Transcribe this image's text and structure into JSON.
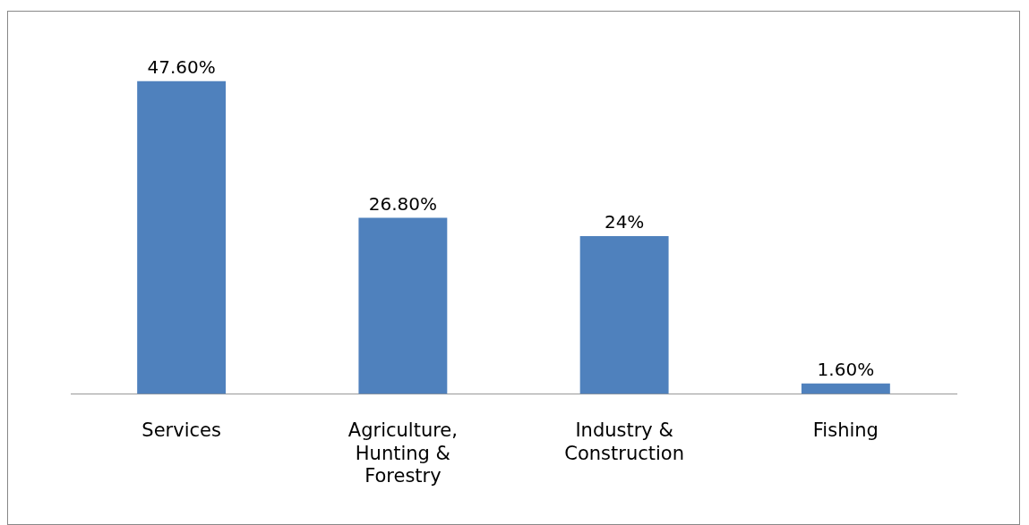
{
  "chart_data": {
    "type": "bar",
    "categories": [
      "Services",
      "Agriculture, Hunting & Forestry",
      "Industry & Construction",
      "Fishing"
    ],
    "values": [
      47.6,
      26.8,
      24,
      1.6
    ],
    "value_labels": [
      "47.60%",
      "26.80%",
      "24%",
      "1.60%"
    ],
    "color": "#4f81bd",
    "grid": false,
    "legend": false,
    "tick_labels": "x"
  }
}
